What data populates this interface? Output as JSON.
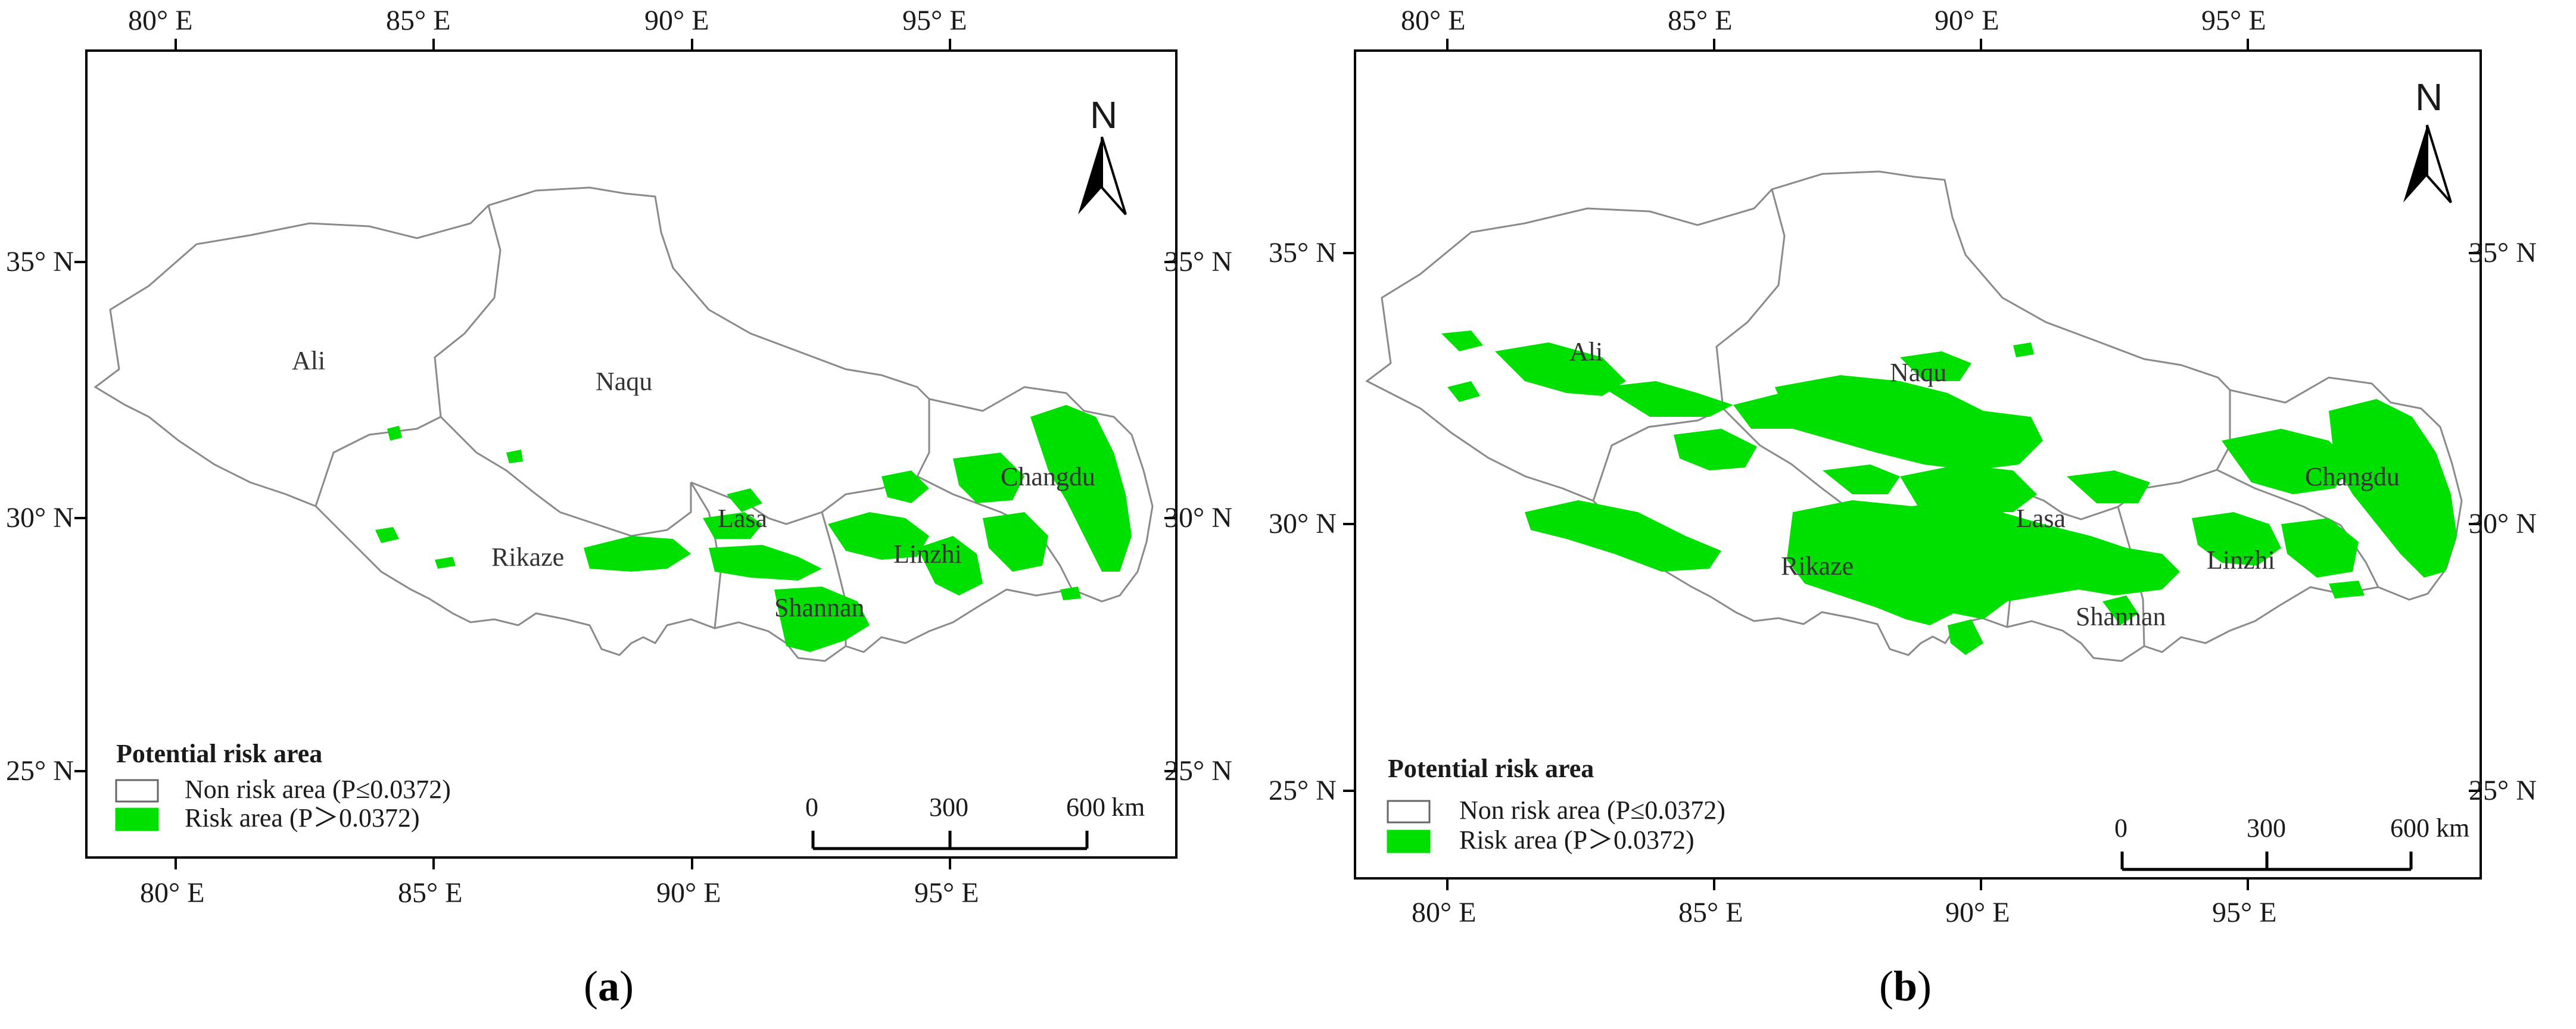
{
  "panels": [
    {
      "id": "a",
      "caption_open": "(",
      "caption_letter": "a",
      "caption_close": ")",
      "lon_ticks": [
        "80° E",
        "85° E",
        "90° E",
        "95° E"
      ],
      "lat_ticks": [
        "35° N",
        "30° N",
        "25° N"
      ],
      "regions": [
        "Ali",
        "Naqu",
        "Changdu",
        "Lasa",
        "Rikaze",
        "Linzhi",
        "Shannan"
      ],
      "north_label": "N",
      "legend": {
        "title": "Potential risk area",
        "items": [
          {
            "label": "Non risk area (P≤0.0372)",
            "color": "#ffffff"
          },
          {
            "label": "Risk area (P＞0.0372)",
            "color": "#00e000"
          }
        ]
      },
      "scale": {
        "labels": [
          "0",
          "300",
          "600"
        ],
        "unit": "km"
      }
    },
    {
      "id": "b",
      "caption_open": "(",
      "caption_letter": "b",
      "caption_close": ")",
      "lon_ticks": [
        "80° E",
        "85° E",
        "90° E",
        "95° E"
      ],
      "lat_ticks": [
        "35° N",
        "30° N",
        "25° N"
      ],
      "regions": [
        "Ali",
        "Naqu",
        "Changdu",
        "Lasa",
        "Rikaze",
        "Linzhi",
        "Shannan"
      ],
      "north_label": "N",
      "legend": {
        "title": "Potential risk area",
        "items": [
          {
            "label": "Non risk area (P≤0.0372)",
            "color": "#ffffff"
          },
          {
            "label": "Risk area (P＞0.0372)",
            "color": "#00e000"
          }
        ]
      },
      "scale": {
        "labels": [
          "0",
          "300",
          "600"
        ],
        "unit": "km"
      }
    }
  ],
  "colors": {
    "risk": "#00e000",
    "boundary": "#8a8a8a",
    "frame": "#000000"
  }
}
